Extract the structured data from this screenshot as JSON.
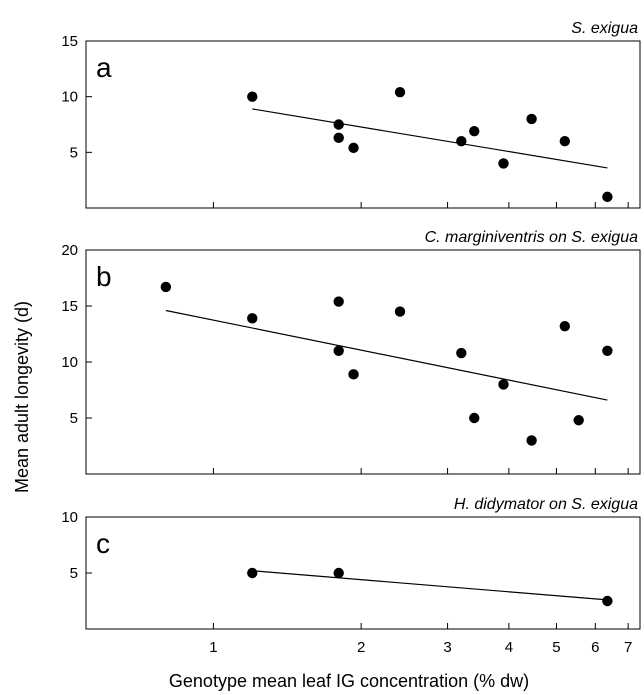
{
  "chart_data": [
    {
      "type": "scatter",
      "panel_label": "a",
      "title": "S. exigua",
      "xscale": "log",
      "xlim": [
        0.55,
        7.4
      ],
      "ylim": [
        0,
        15
      ],
      "yticks": [
        5,
        10,
        15
      ],
      "points": [
        {
          "x": 1.2,
          "y": 10.0
        },
        {
          "x": 1.8,
          "y": 7.5
        },
        {
          "x": 1.8,
          "y": 6.3
        },
        {
          "x": 1.93,
          "y": 5.4
        },
        {
          "x": 2.4,
          "y": 10.4
        },
        {
          "x": 3.2,
          "y": 6.0
        },
        {
          "x": 3.4,
          "y": 6.9
        },
        {
          "x": 3.9,
          "y": 4.0
        },
        {
          "x": 4.45,
          "y": 8.0
        },
        {
          "x": 5.2,
          "y": 6.0
        },
        {
          "x": 6.35,
          "y": 1.0
        }
      ],
      "trend_line": [
        {
          "x": 1.2,
          "y": 8.9
        },
        {
          "x": 6.35,
          "y": 3.6
        }
      ]
    },
    {
      "type": "scatter",
      "panel_label": "b",
      "title": "C. marginiventris on S. exigua",
      "xscale": "log",
      "xlim": [
        0.55,
        7.4
      ],
      "ylim": [
        0,
        20
      ],
      "yticks": [
        5,
        10,
        15,
        20
      ],
      "points": [
        {
          "x": 0.8,
          "y": 16.7
        },
        {
          "x": 1.2,
          "y": 13.9
        },
        {
          "x": 1.8,
          "y": 15.4
        },
        {
          "x": 1.8,
          "y": 11.0
        },
        {
          "x": 1.93,
          "y": 8.9
        },
        {
          "x": 2.4,
          "y": 14.5
        },
        {
          "x": 3.2,
          "y": 10.8
        },
        {
          "x": 3.4,
          "y": 5.0
        },
        {
          "x": 3.9,
          "y": 8.0
        },
        {
          "x": 4.45,
          "y": 3.0
        },
        {
          "x": 5.2,
          "y": 13.2
        },
        {
          "x": 5.55,
          "y": 4.8
        },
        {
          "x": 6.35,
          "y": 11.0
        }
      ],
      "trend_line": [
        {
          "x": 0.8,
          "y": 14.6
        },
        {
          "x": 6.35,
          "y": 6.6
        }
      ]
    },
    {
      "type": "scatter",
      "panel_label": "c",
      "title": "H. didymator on S. exigua",
      "xscale": "log",
      "xlim": [
        0.55,
        7.4
      ],
      "ylim": [
        0,
        10
      ],
      "yticks": [
        5,
        10
      ],
      "xticks": [
        1,
        2,
        3,
        4,
        5,
        6,
        7
      ],
      "points": [
        {
          "x": 1.2,
          "y": 5.0
        },
        {
          "x": 1.8,
          "y": 5.0
        },
        {
          "x": 6.35,
          "y": 2.5
        }
      ],
      "trend_line": [
        {
          "x": 1.2,
          "y": 5.2
        },
        {
          "x": 6.35,
          "y": 2.6
        }
      ]
    }
  ],
  "ylabel": "Mean adult longevity (d)",
  "xlabel": "Genotype mean leaf IG concentration (% dw)"
}
